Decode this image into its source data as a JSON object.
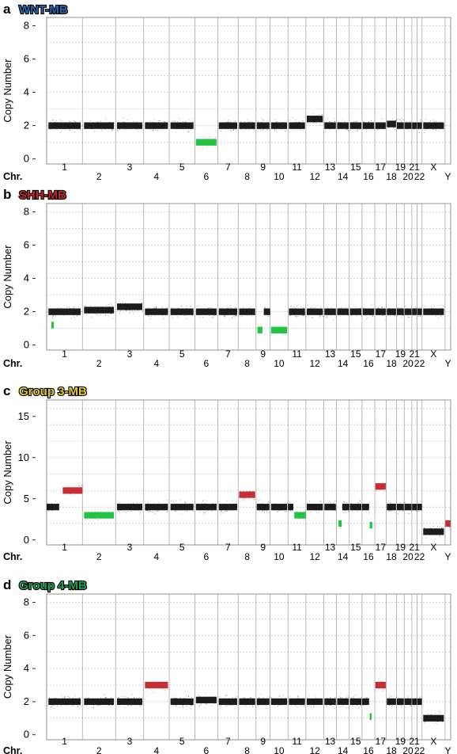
{
  "colors": {
    "neutral": "#111111",
    "gain": "#c0262d",
    "loss": "#1bbf3c",
    "grid": "#b9b9b9",
    "divider": "#9a9a9a"
  },
  "chromosomes": [
    "1",
    "2",
    "3",
    "4",
    "5",
    "6",
    "7",
    "8",
    "9",
    "10",
    "11",
    "12",
    "13",
    "14",
    "15",
    "16",
    "17",
    "18",
    "19",
    "20",
    "21",
    "22",
    "X",
    "Y"
  ],
  "chr_prefix": "Chr.",
  "chart_data": [
    {
      "type": "scatter",
      "panel": "a",
      "title": "WNT-MB",
      "title_color": "#2a64a8",
      "ylabel": "Copy Number",
      "xlabel": "",
      "ylim": [
        -0.3,
        8.5
      ],
      "yticks": [
        0,
        2,
        4,
        6,
        8
      ],
      "ygrid": [
        1,
        2,
        3,
        4,
        5,
        6,
        7,
        8
      ],
      "segments": [
        {
          "chr": "1",
          "cn": 2,
          "state": "neutral"
        },
        {
          "chr": "2",
          "cn": 2,
          "state": "neutral"
        },
        {
          "chr": "3",
          "cn": 2,
          "state": "neutral"
        },
        {
          "chr": "4",
          "cn": 2,
          "state": "neutral"
        },
        {
          "chr": "5",
          "cn": 2,
          "state": "neutral"
        },
        {
          "chr": "6",
          "cn": 1,
          "state": "loss"
        },
        {
          "chr": "7",
          "cn": 2,
          "state": "neutral"
        },
        {
          "chr": "8",
          "cn": 2,
          "state": "neutral"
        },
        {
          "chr": "9",
          "cn": 2,
          "state": "neutral"
        },
        {
          "chr": "10",
          "cn": 2,
          "state": "neutral"
        },
        {
          "chr": "11",
          "cn": 2,
          "state": "neutral"
        },
        {
          "chr": "12",
          "cn": 2.4,
          "state": "neutral"
        },
        {
          "chr": "13",
          "cn": 2,
          "state": "neutral"
        },
        {
          "chr": "14",
          "cn": 2,
          "state": "neutral"
        },
        {
          "chr": "15",
          "cn": 2,
          "state": "neutral"
        },
        {
          "chr": "16",
          "cn": 2,
          "state": "neutral"
        },
        {
          "chr": "17",
          "cn": 2,
          "state": "neutral"
        },
        {
          "chr": "18",
          "cn": 2.1,
          "state": "neutral"
        },
        {
          "chr": "19",
          "cn": 2,
          "state": "neutral"
        },
        {
          "chr": "20",
          "cn": 2,
          "state": "neutral"
        },
        {
          "chr": "21",
          "cn": 2,
          "state": "neutral"
        },
        {
          "chr": "22",
          "cn": 2,
          "state": "neutral"
        },
        {
          "chr": "X",
          "cn": 2,
          "state": "neutral"
        }
      ]
    },
    {
      "type": "scatter",
      "panel": "b",
      "title": "SHH-MB",
      "title_color": "#c0262d",
      "ylabel": "Copy Number",
      "xlabel": "",
      "ylim": [
        -0.3,
        8.5
      ],
      "yticks": [
        0,
        2,
        4,
        6,
        8
      ],
      "ygrid": [
        1,
        2,
        3,
        4,
        5,
        6,
        7,
        8
      ],
      "segments": [
        {
          "chr": "1",
          "cn": 2,
          "state": "neutral"
        },
        {
          "chr": "1",
          "cn": 1.2,
          "state": "loss",
          "from": 0.13,
          "to": 0.2
        },
        {
          "chr": "2",
          "cn": 2.1,
          "state": "neutral"
        },
        {
          "chr": "3",
          "cn": 2.3,
          "state": "neutral"
        },
        {
          "chr": "4",
          "cn": 2,
          "state": "neutral"
        },
        {
          "chr": "5",
          "cn": 2,
          "state": "neutral"
        },
        {
          "chr": "6",
          "cn": 2,
          "state": "neutral"
        },
        {
          "chr": "7",
          "cn": 2,
          "state": "neutral"
        },
        {
          "chr": "8",
          "cn": 2,
          "state": "neutral"
        },
        {
          "chr": "9",
          "cn": 0.9,
          "state": "loss",
          "from": 0.1,
          "to": 0.45
        },
        {
          "chr": "9",
          "cn": 2,
          "state": "neutral",
          "from": 0.55,
          "to": 1
        },
        {
          "chr": "10",
          "cn": 0.9,
          "state": "loss"
        },
        {
          "chr": "11",
          "cn": 2,
          "state": "neutral"
        },
        {
          "chr": "12",
          "cn": 2,
          "state": "neutral"
        },
        {
          "chr": "13",
          "cn": 2,
          "state": "neutral"
        },
        {
          "chr": "14",
          "cn": 2,
          "state": "neutral"
        },
        {
          "chr": "15",
          "cn": 2,
          "state": "neutral"
        },
        {
          "chr": "16",
          "cn": 2,
          "state": "neutral"
        },
        {
          "chr": "17",
          "cn": 2,
          "state": "neutral"
        },
        {
          "chr": "18",
          "cn": 2,
          "state": "neutral"
        },
        {
          "chr": "19",
          "cn": 2,
          "state": "neutral"
        },
        {
          "chr": "20",
          "cn": 2,
          "state": "neutral"
        },
        {
          "chr": "21",
          "cn": 2,
          "state": "neutral"
        },
        {
          "chr": "22",
          "cn": 2,
          "state": "neutral"
        },
        {
          "chr": "X",
          "cn": 2,
          "state": "neutral"
        }
      ]
    },
    {
      "type": "scatter",
      "panel": "c",
      "title": "Group 3-MB",
      "title_color": "#e3c832",
      "ylabel": "Copy Number",
      "xlabel": "",
      "ylim": [
        -0.6,
        17
      ],
      "yticks": [
        0,
        5,
        10,
        15
      ],
      "ygrid": [
        2,
        4,
        6,
        8,
        10,
        12,
        14,
        16
      ],
      "segments": [
        {
          "chr": "1",
          "cn": 4,
          "state": "neutral",
          "from": 0,
          "to": 0.35
        },
        {
          "chr": "1",
          "cn": 6,
          "state": "gain",
          "from": 0.45,
          "to": 1
        },
        {
          "chr": "2",
          "cn": 3,
          "state": "loss"
        },
        {
          "chr": "3",
          "cn": 4,
          "state": "neutral"
        },
        {
          "chr": "4",
          "cn": 4,
          "state": "neutral"
        },
        {
          "chr": "5",
          "cn": 4,
          "state": "neutral"
        },
        {
          "chr": "6",
          "cn": 4,
          "state": "neutral"
        },
        {
          "chr": "7",
          "cn": 4,
          "state": "neutral"
        },
        {
          "chr": "8",
          "cn": 5.5,
          "state": "gain"
        },
        {
          "chr": "9",
          "cn": 4,
          "state": "neutral"
        },
        {
          "chr": "10",
          "cn": 4,
          "state": "neutral"
        },
        {
          "chr": "11",
          "cn": 3,
          "state": "loss",
          "from": 0.35,
          "to": 1
        },
        {
          "chr": "11",
          "cn": 4,
          "state": "neutral",
          "from": 0,
          "to": 0.3
        },
        {
          "chr": "12",
          "cn": 4,
          "state": "neutral"
        },
        {
          "chr": "13",
          "cn": 4,
          "state": "neutral"
        },
        {
          "chr": "14",
          "cn": 2,
          "state": "loss",
          "from": 0.15,
          "to": 0.4
        },
        {
          "chr": "14",
          "cn": 4,
          "state": "neutral",
          "from": 0.45,
          "to": 1
        },
        {
          "chr": "15",
          "cn": 4,
          "state": "neutral"
        },
        {
          "chr": "16",
          "cn": 4,
          "state": "neutral",
          "from": 0,
          "to": 0.55
        },
        {
          "chr": "16",
          "cn": 1.8,
          "state": "loss",
          "from": 0.6,
          "to": 0.8
        },
        {
          "chr": "17",
          "cn": 6.5,
          "state": "gain"
        },
        {
          "chr": "18",
          "cn": 4,
          "state": "neutral"
        },
        {
          "chr": "19",
          "cn": 4,
          "state": "neutral"
        },
        {
          "chr": "20",
          "cn": 4,
          "state": "neutral"
        },
        {
          "chr": "21",
          "cn": 4,
          "state": "neutral"
        },
        {
          "chr": "22",
          "cn": 4,
          "state": "neutral"
        },
        {
          "chr": "X",
          "cn": 1,
          "state": "neutral"
        },
        {
          "chr": "Y",
          "cn": 2,
          "state": "gain"
        }
      ]
    },
    {
      "type": "scatter",
      "panel": "d",
      "title": "Group 4-MB",
      "title_color": "#1f9e55",
      "ylabel": "Copy Number",
      "xlabel": "",
      "ylim": [
        -0.3,
        8.5
      ],
      "yticks": [
        0,
        2,
        4,
        6,
        8
      ],
      "ygrid": [
        1,
        2,
        3,
        4,
        5,
        6,
        7,
        8
      ],
      "segments": [
        {
          "chr": "1",
          "cn": 2,
          "state": "neutral"
        },
        {
          "chr": "2",
          "cn": 2,
          "state": "neutral"
        },
        {
          "chr": "3",
          "cn": 2,
          "state": "neutral"
        },
        {
          "chr": "4",
          "cn": 3,
          "state": "gain"
        },
        {
          "chr": "5",
          "cn": 2,
          "state": "neutral"
        },
        {
          "chr": "6",
          "cn": 2.1,
          "state": "neutral"
        },
        {
          "chr": "7",
          "cn": 2,
          "state": "neutral"
        },
        {
          "chr": "8",
          "cn": 2,
          "state": "neutral"
        },
        {
          "chr": "9",
          "cn": 2,
          "state": "neutral"
        },
        {
          "chr": "10",
          "cn": 2,
          "state": "neutral"
        },
        {
          "chr": "11",
          "cn": 2,
          "state": "neutral"
        },
        {
          "chr": "12",
          "cn": 2,
          "state": "neutral"
        },
        {
          "chr": "13",
          "cn": 2,
          "state": "neutral"
        },
        {
          "chr": "14",
          "cn": 2,
          "state": "neutral"
        },
        {
          "chr": "15",
          "cn": 2,
          "state": "neutral"
        },
        {
          "chr": "16",
          "cn": 2,
          "state": "neutral",
          "from": 0,
          "to": 0.55
        },
        {
          "chr": "16",
          "cn": 1.1,
          "state": "loss",
          "from": 0.6,
          "to": 0.75
        },
        {
          "chr": "17",
          "cn": 3,
          "state": "gain"
        },
        {
          "chr": "18",
          "cn": 2,
          "state": "neutral"
        },
        {
          "chr": "19",
          "cn": 2,
          "state": "neutral"
        },
        {
          "chr": "20",
          "cn": 2,
          "state": "neutral"
        },
        {
          "chr": "21",
          "cn": 2,
          "state": "neutral"
        },
        {
          "chr": "22",
          "cn": 2,
          "state": "neutral"
        },
        {
          "chr": "X",
          "cn": 1,
          "state": "neutral"
        }
      ]
    }
  ]
}
